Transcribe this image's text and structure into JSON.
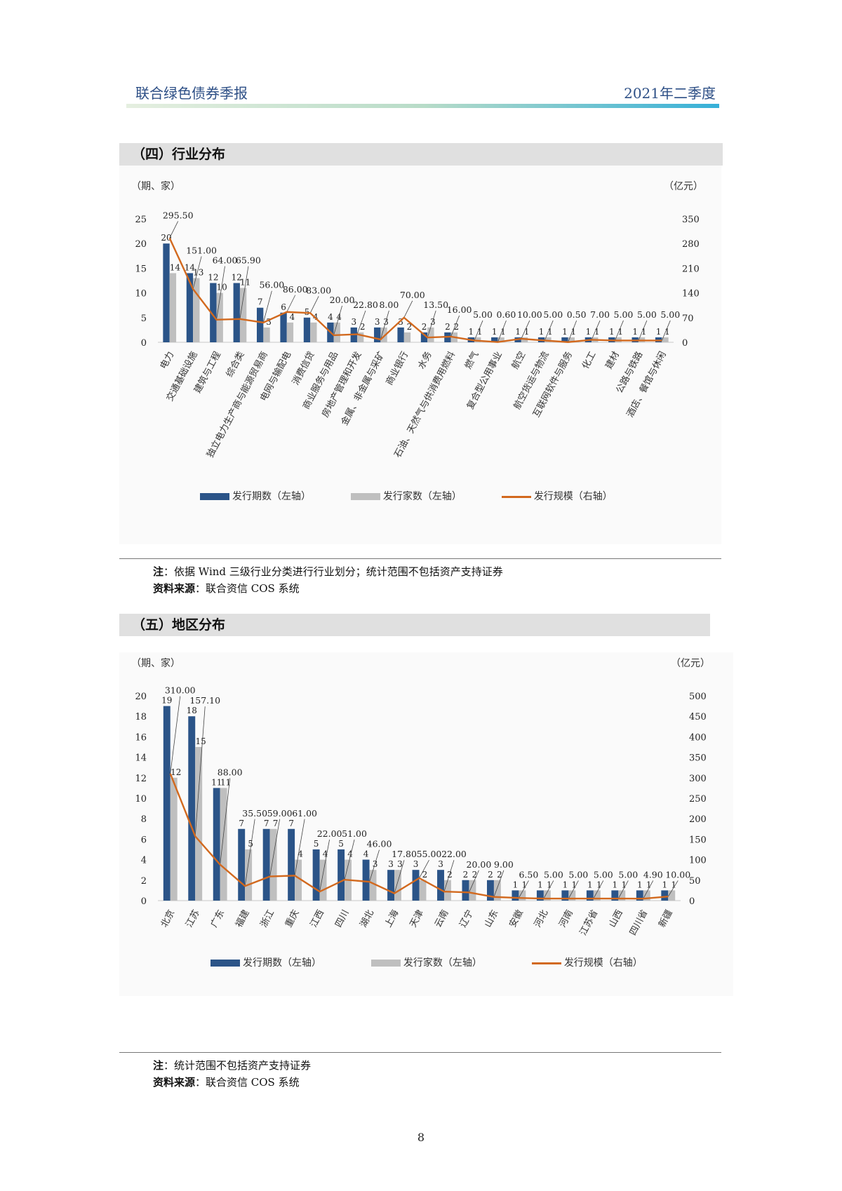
{
  "header": {
    "title": "联合绿色债券季报",
    "period": "2021年二季度"
  },
  "section4": {
    "title": "（四）行业分布"
  },
  "section5": {
    "title": "（五）地区分布"
  },
  "legend": {
    "issues": "发行期数（左轴）",
    "issuers": "发行家数（左轴）",
    "scale": "发行规模（右轴）"
  },
  "colors": {
    "issues": "#2b5488",
    "issuers": "#bfbfbf",
    "scale": "#d2691e"
  },
  "note1": {
    "label": "注",
    "text": "：依据 Wind 三级行业分类进行行业划分；统计范围不包括资产支持证券"
  },
  "source1": {
    "label": "资料来源",
    "text": "：联合资信 COS 系统"
  },
  "note2": {
    "label": "注",
    "text": "：统计范围不包括资产支持证券"
  },
  "source2": {
    "label": "资料来源",
    "text": "：联合资信 COS 系统"
  },
  "page_number": "8",
  "chart_data": [
    {
      "type": "bar",
      "title": "",
      "left_axis_unit": "（期、家）",
      "right_axis_unit": "（亿元）",
      "ylim_left": [
        0,
        25
      ],
      "ylim_right": [
        0,
        350
      ],
      "left_ticks": [
        0,
        5,
        10,
        15,
        20,
        25
      ],
      "right_ticks": [
        0,
        70,
        140,
        210,
        280,
        350
      ],
      "categories": [
        "电力",
        "交通基础设施",
        "建筑与工程",
        "综合类",
        "独立电力生产商与能源贸易商",
        "电网与输配电",
        "消费信贷",
        "商业服务与用品",
        "房地产管理和开发",
        "金属、非金属与采矿",
        "商业银行",
        "水务",
        "石油、天然气与供消费用燃料",
        "燃气",
        "复合型公用事业",
        "航空",
        "航空货运与物流",
        "互联网软件与服务",
        "化工",
        "建材",
        "公路与铁路",
        "酒店、餐馆与休闲"
      ],
      "series": [
        {
          "name": "发行期数（左轴）",
          "axis": "left",
          "values": [
            20,
            14,
            12,
            12,
            7,
            6,
            5,
            4,
            3,
            3,
            3,
            2,
            2,
            1,
            1,
            1,
            1,
            1,
            1,
            1,
            1,
            1
          ]
        },
        {
          "name": "发行家数（左轴）",
          "axis": "left",
          "values": [
            14,
            13,
            10,
            11,
            3,
            4,
            4,
            4,
            2,
            3,
            2,
            3,
            2,
            1,
            1,
            1,
            1,
            1,
            1,
            1,
            1,
            1
          ]
        },
        {
          "name": "发行规模（右轴）",
          "axis": "right",
          "values": [
            295.5,
            151.0,
            64.0,
            65.9,
            56.0,
            86.0,
            83.0,
            20.0,
            22.8,
            8.0,
            70.0,
            13.5,
            16.0,
            5.0,
            0.6,
            10.0,
            5.0,
            0.5,
            7.0,
            5.0,
            5.0,
            5.0
          ]
        }
      ],
      "scale_labels": [
        "295.50",
        "151.00",
        "64.00",
        "65.90",
        "56.00",
        "86.00",
        "83.00",
        "20.00",
        "22.80",
        "8.00",
        "70.00",
        "13.50",
        "16.00",
        "5.00",
        "0.60",
        "10.00",
        "5.00",
        "0.50",
        "7.00",
        "5.00",
        "5.00",
        "5.00"
      ]
    },
    {
      "type": "bar",
      "title": "",
      "left_axis_unit": "（期、家）",
      "right_axis_unit": "（亿元）",
      "ylim_left": [
        0,
        20
      ],
      "ylim_right": [
        0,
        500
      ],
      "left_ticks": [
        0,
        2,
        4,
        6,
        8,
        10,
        12,
        14,
        16,
        18,
        20
      ],
      "right_ticks": [
        0,
        50,
        100,
        150,
        200,
        250,
        300,
        350,
        400,
        450,
        500
      ],
      "categories": [
        "北京",
        "江苏",
        "广东",
        "福建",
        "浙江",
        "重庆",
        "江西",
        "四川",
        "湖北",
        "上海",
        "天津",
        "云南",
        "辽宁",
        "山东",
        "安徽",
        "河北",
        "河南",
        "江苏省",
        "山西",
        "四川省",
        "新疆"
      ],
      "series": [
        {
          "name": "发行期数（左轴）",
          "axis": "left",
          "values": [
            19,
            18,
            11,
            7,
            7,
            7,
            5,
            5,
            4,
            3,
            3,
            3,
            2,
            2,
            1,
            1,
            1,
            1,
            1,
            1,
            1
          ]
        },
        {
          "name": "发行家数（左轴）",
          "axis": "left",
          "values": [
            12,
            15,
            11,
            5,
            7,
            4,
            4,
            4,
            3,
            3,
            2,
            2,
            2,
            2,
            1,
            1,
            1,
            1,
            1,
            1,
            1
          ]
        },
        {
          "name": "发行规模（右轴）",
          "axis": "right",
          "values": [
            310.0,
            157.1,
            88.0,
            35.5,
            59.0,
            61.0,
            22.0,
            51.0,
            46.0,
            17.8,
            55.0,
            22.0,
            20.0,
            9.0,
            6.5,
            5.0,
            5.0,
            5.0,
            5.0,
            4.9,
            10.0
          ]
        }
      ],
      "scale_labels": [
        "310.00",
        "157.10",
        "88.00",
        "35.50",
        "59.00",
        "61.00",
        "22.00",
        "51.00",
        "46.00",
        "17.80",
        "55.00",
        "22.00",
        "20.00",
        "9.00",
        "6.50",
        "5.00",
        "5.00",
        "5.00",
        "5.00",
        "4.90",
        "10.00"
      ]
    }
  ]
}
